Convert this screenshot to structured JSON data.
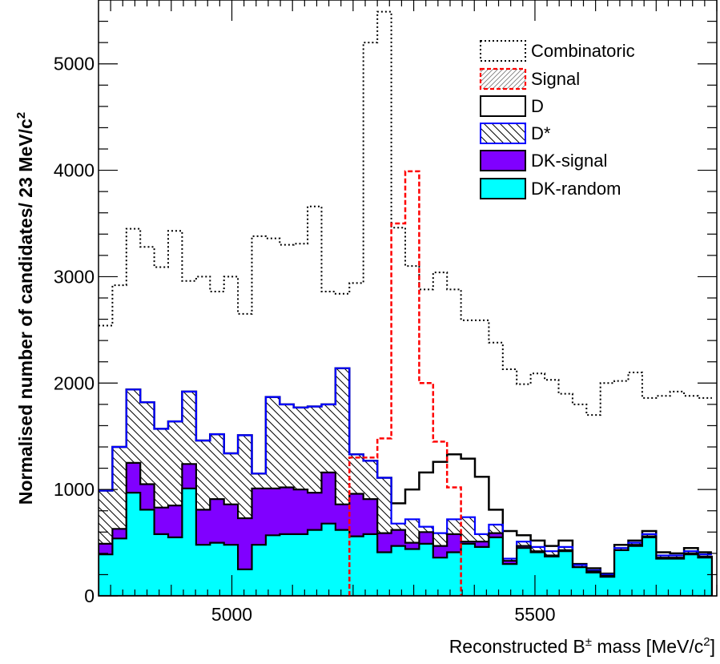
{
  "chart_data": {
    "type": "histogram",
    "xlabel_parts": {
      "pre": "Reconstructed B",
      "sup": "±",
      "mid": " mass [MeV/c",
      "sup2": "2",
      "post": "]"
    },
    "ylabel_parts": {
      "pre": "Normalised number of candidates/ 23 MeV/c",
      "sup": "2"
    },
    "xlim": [
      4780,
      5800
    ],
    "ylim": [
      0,
      5600
    ],
    "x_ticks": [
      5000,
      5500
    ],
    "y_ticks": [
      0,
      1000,
      2000,
      3000,
      4000,
      5000
    ],
    "bin_edges": [
      4780,
      4803,
      4826,
      4849,
      4872,
      4895,
      4918,
      4941,
      4964,
      4987,
      5010,
      5033,
      5056,
      5079,
      5102,
      5125,
      5148,
      5171,
      5194,
      5217,
      5240,
      5263,
      5286,
      5309,
      5332,
      5355,
      5378,
      5401,
      5424,
      5447,
      5470,
      5493,
      5516,
      5539,
      5562,
      5585,
      5608,
      5631,
      5654,
      5677,
      5700,
      5723,
      5746,
      5769,
      5792
    ],
    "series": [
      {
        "name": "DK-random",
        "style": "filled",
        "values": [
          390,
          540,
          970,
          810,
          580,
          550,
          1010,
          480,
          500,
          480,
          250,
          480,
          570,
          580,
          580,
          620,
          680,
          620,
          560,
          580,
          410,
          470,
          440,
          490,
          360,
          410,
          490,
          460,
          550,
          300,
          450,
          410,
          370,
          420,
          270,
          220,
          180,
          430,
          470,
          550,
          350,
          350,
          390,
          360
        ]
      },
      {
        "name": "DK-signal",
        "style": "filled",
        "values": [
          490,
          630,
          1250,
          1050,
          830,
          850,
          1240,
          810,
          910,
          860,
          730,
          1010,
          1010,
          1020,
          1000,
          970,
          1160,
          860,
          960,
          910,
          590,
          620,
          500,
          600,
          470,
          580,
          510,
          510,
          590,
          330,
          470,
          420,
          380,
          430,
          270,
          230,
          190,
          430,
          480,
          560,
          360,
          360,
          400,
          370
        ]
      },
      {
        "name": "D*",
        "style": "hatched",
        "values": [
          990,
          1400,
          1940,
          1820,
          1570,
          1640,
          1920,
          1460,
          1520,
          1340,
          1510,
          1150,
          1870,
          1800,
          1770,
          1780,
          1800,
          2140,
          1330,
          1270,
          1110,
          680,
          720,
          650,
          590,
          720,
          740,
          580,
          670,
          350,
          510,
          460,
          420,
          460,
          290,
          240,
          200,
          450,
          500,
          580,
          380,
          380,
          420,
          390
        ]
      },
      {
        "name": "D",
        "style": "outline",
        "values": [
          990,
          1400,
          1940,
          1820,
          1570,
          1640,
          1920,
          1460,
          1520,
          1340,
          1510,
          1150,
          1870,
          1800,
          1770,
          1780,
          1800,
          2140,
          1330,
          1270,
          1110,
          870,
          1000,
          1160,
          1260,
          1330,
          1290,
          1120,
          810,
          610,
          570,
          520,
          470,
          520,
          300,
          260,
          210,
          480,
          520,
          610,
          410,
          400,
          450,
          410
        ]
      },
      {
        "name": "Signal",
        "style": "dashed-hatched",
        "values": [
          0,
          0,
          0,
          0,
          0,
          0,
          0,
          0,
          0,
          0,
          0,
          0,
          0,
          0,
          0,
          0,
          0,
          0,
          1300,
          1300,
          1480,
          3500,
          3990,
          2000,
          1450,
          1020,
          0,
          0,
          0,
          0,
          0,
          0,
          0,
          0,
          0,
          0,
          0,
          0,
          0,
          0,
          0,
          0,
          0,
          0
        ]
      },
      {
        "name": "Combinatoric",
        "style": "dotted",
        "values": [
          2540,
          2920,
          3450,
          3280,
          3090,
          3430,
          2960,
          3000,
          2860,
          3000,
          2650,
          3380,
          3360,
          3300,
          3310,
          3660,
          2860,
          2840,
          2940,
          5200,
          5490,
          3460,
          3100,
          2880,
          3040,
          2880,
          2590,
          2590,
          2380,
          2130,
          1990,
          2090,
          2030,
          1900,
          1800,
          1700,
          2000,
          2020,
          2100,
          1860,
          1880,
          1920,
          1880,
          1860
        ]
      }
    ],
    "legend": {
      "position": "top-right",
      "entries": [
        {
          "label": "Combinatoric"
        },
        {
          "label": "Signal"
        },
        {
          "label": "D"
        },
        {
          "label": "D*"
        },
        {
          "label": "DK-signal"
        },
        {
          "label": "DK-random"
        }
      ]
    },
    "colors": {
      "dk_random": "#00ffff",
      "dk_signal": "#8000ff",
      "dstar_line": "#0000ff",
      "signal_line": "#ff0000",
      "hatch": "#000000"
    }
  }
}
